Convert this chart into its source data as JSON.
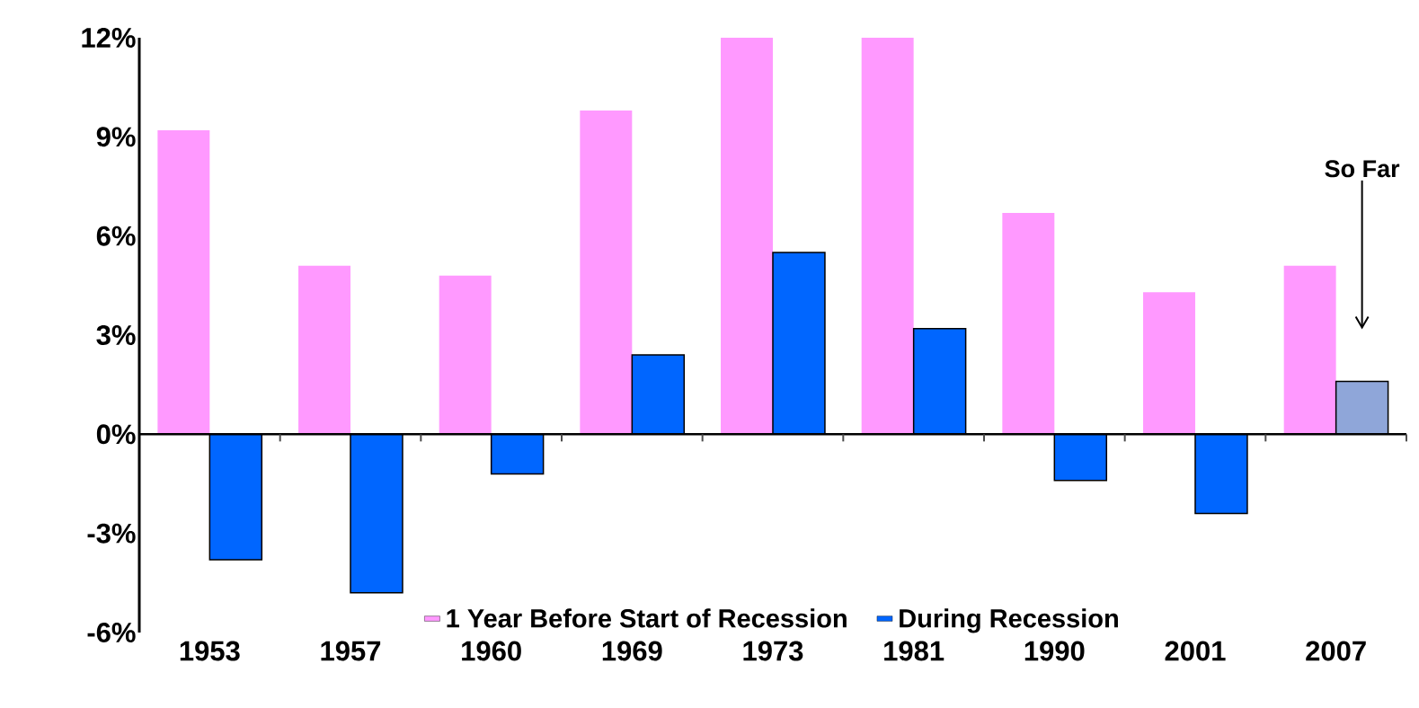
{
  "chart_data": {
    "type": "bar",
    "categories": [
      "1953",
      "1957",
      "1960",
      "1969",
      "1973",
      "1981",
      "1990",
      "2001",
      "2007"
    ],
    "series": [
      {
        "name": "1 Year Before Start of Recession",
        "color": "#ff99ff",
        "values": [
          9.2,
          5.1,
          4.8,
          9.8,
          12.0,
          12.0,
          6.7,
          4.3,
          5.1
        ]
      },
      {
        "name": "During Recession",
        "color": "#0066ff",
        "colors": [
          "#0066ff",
          "#0066ff",
          "#0066ff",
          "#0066ff",
          "#0066ff",
          "#0066ff",
          "#0066ff",
          "#0066ff",
          "#8fa6d9"
        ],
        "values": [
          -3.8,
          -4.8,
          -1.2,
          2.4,
          5.5,
          3.2,
          -1.4,
          -2.4,
          1.6
        ]
      }
    ],
    "ylim": [
      -6,
      12
    ],
    "yticks": [
      {
        "value": -6,
        "label": "-6%"
      },
      {
        "value": -3,
        "label": "-3%"
      },
      {
        "value": 0,
        "label": "0%"
      },
      {
        "value": 3,
        "label": "3%"
      },
      {
        "value": 6,
        "label": "6%"
      },
      {
        "value": 9,
        "label": "9%"
      },
      {
        "value": 12,
        "label": "12%"
      }
    ],
    "annotations": [
      "So Far"
    ],
    "ref_lines": [
      {
        "axis": "y",
        "value": 0,
        "color": "#000000"
      }
    ],
    "legend": "bottom"
  }
}
